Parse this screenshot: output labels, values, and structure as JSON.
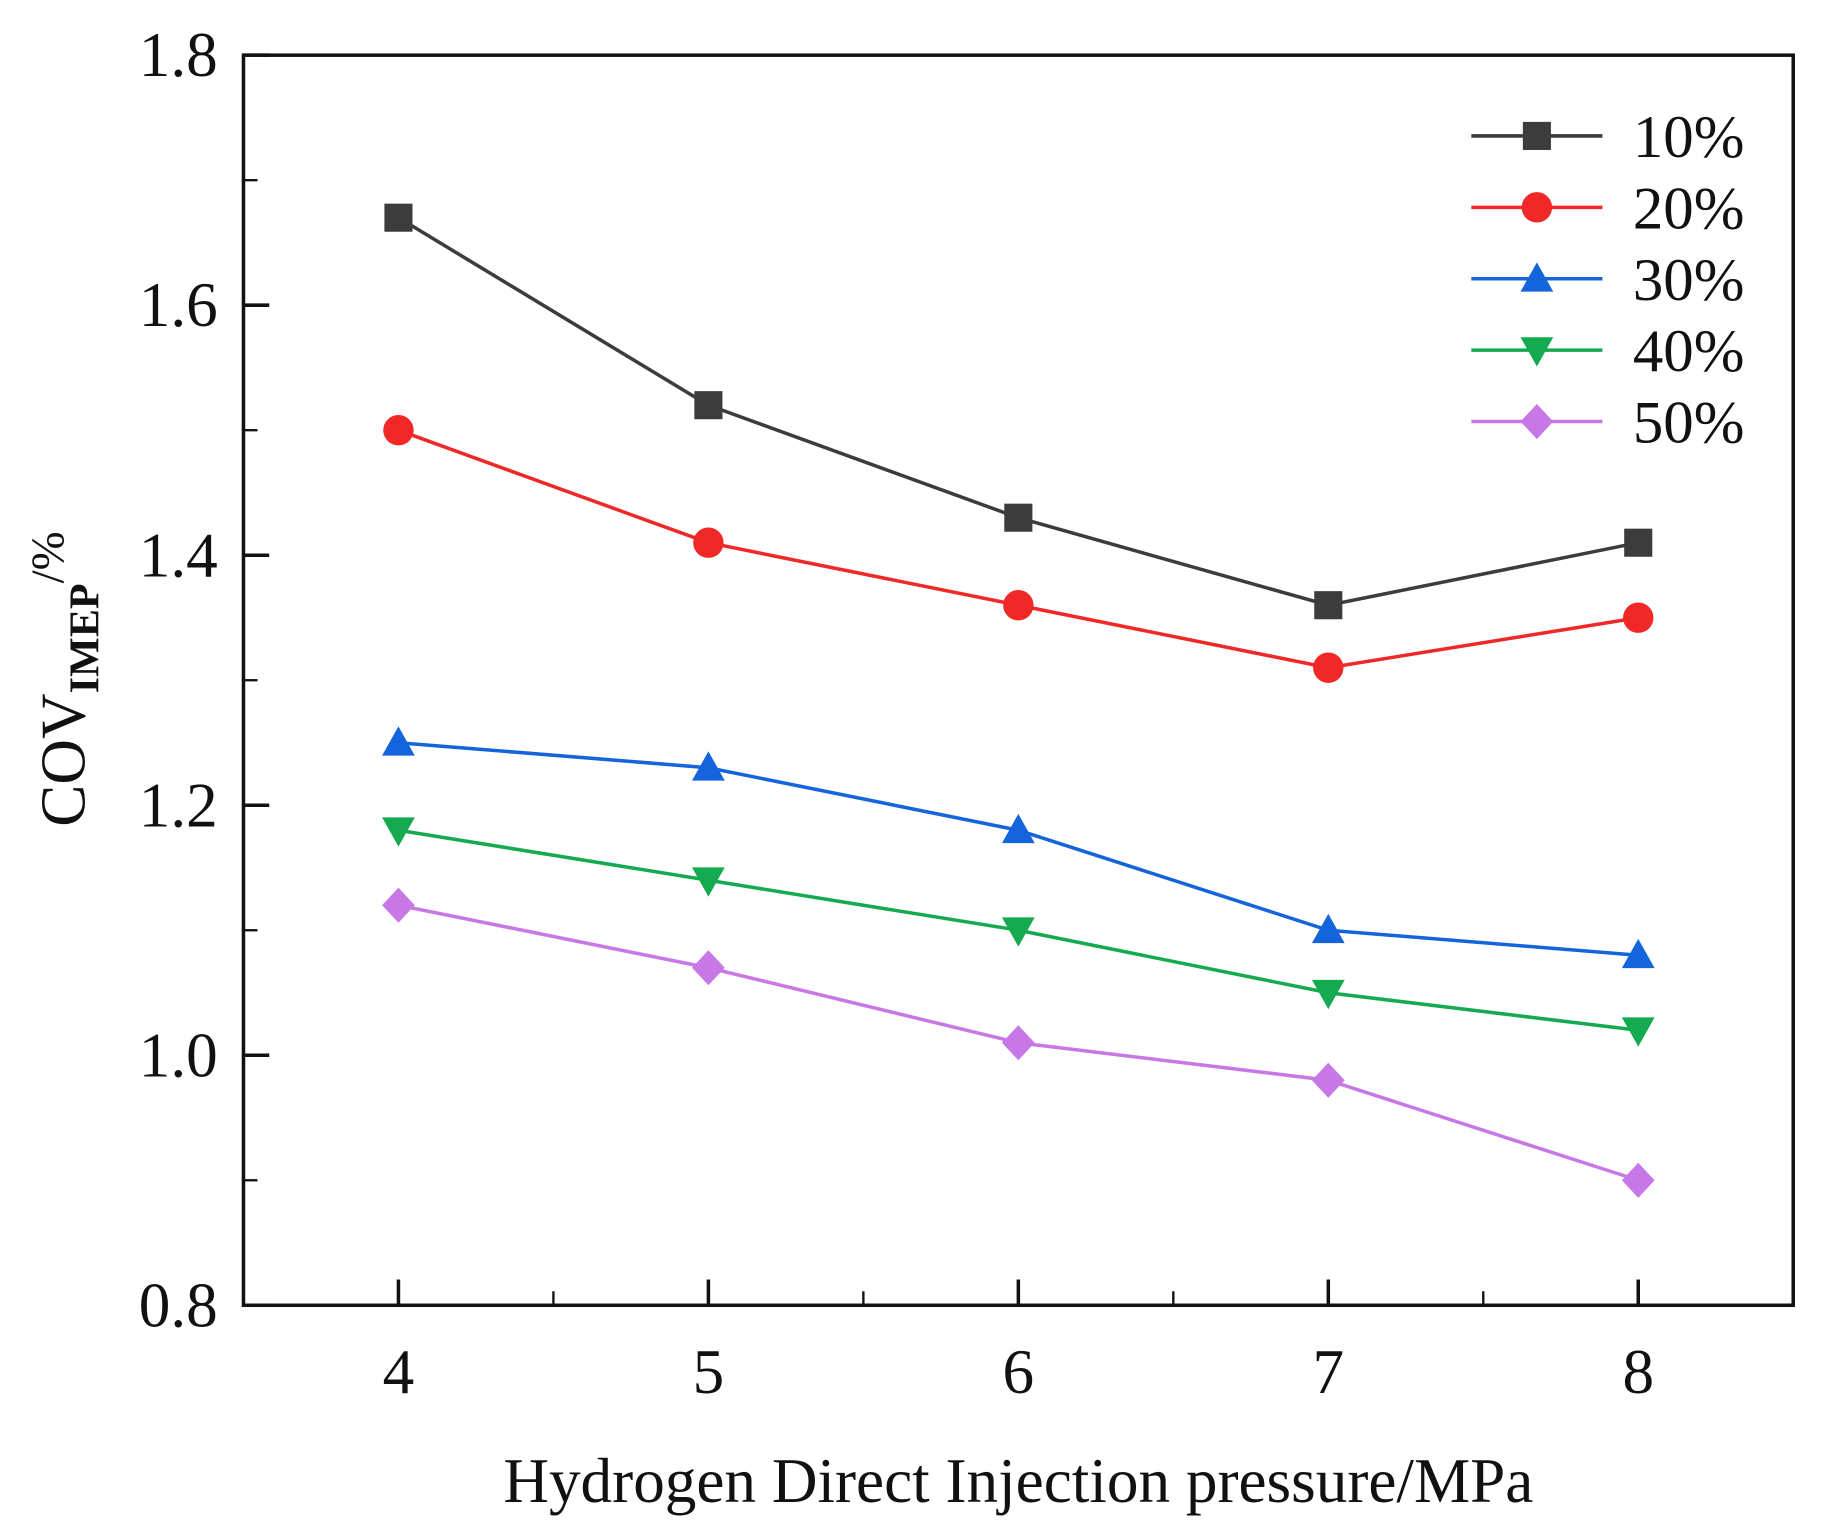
{
  "chart_data": {
    "type": "line",
    "title": "",
    "xlabel": "Hydrogen Direct Injection pressure/MPa",
    "ylabel": {
      "main": "COV",
      "sub": "IMEP",
      "suffix": "/%"
    },
    "x": [
      4,
      5,
      6,
      7,
      8
    ],
    "xlim": [
      3.5,
      8.5
    ],
    "ylim": [
      0.8,
      1.8
    ],
    "xticks": [
      "4",
      "5",
      "6",
      "7",
      "8"
    ],
    "yticks": [
      "0.8",
      "1.0",
      "1.2",
      "1.4",
      "1.6",
      "1.8"
    ],
    "grid": false,
    "legend_position": "top-right",
    "series": [
      {
        "name": "10%",
        "color": "#3c3c3c",
        "marker": "square",
        "values": [
          1.67,
          1.52,
          1.43,
          1.36,
          1.41
        ]
      },
      {
        "name": "20%",
        "color": "#f02828",
        "marker": "circle",
        "values": [
          1.5,
          1.41,
          1.36,
          1.31,
          1.35
        ]
      },
      {
        "name": "30%",
        "color": "#1464dc",
        "marker": "triangle-up",
        "values": [
          1.25,
          1.23,
          1.18,
          1.1,
          1.08
        ]
      },
      {
        "name": "40%",
        "color": "#14aa50",
        "marker": "triangle-down",
        "values": [
          1.18,
          1.14,
          1.1,
          1.05,
          1.02
        ]
      },
      {
        "name": "50%",
        "color": "#c878e6",
        "marker": "diamond",
        "values": [
          1.12,
          1.07,
          1.01,
          0.98,
          0.9
        ]
      }
    ]
  }
}
